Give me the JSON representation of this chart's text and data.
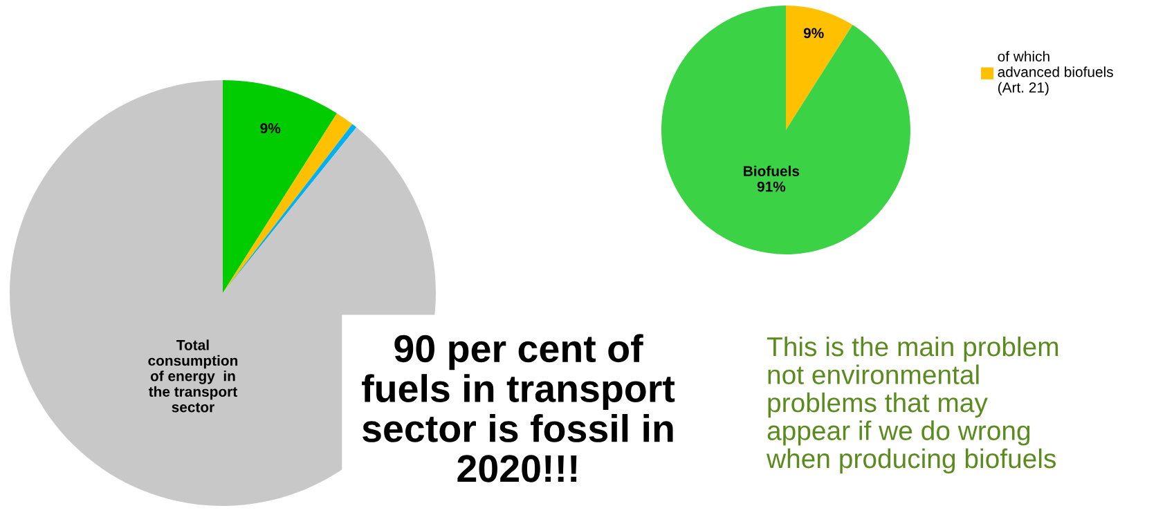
{
  "chart_data": [
    {
      "type": "pie",
      "categories": [
        null,
        null,
        null,
        null
      ],
      "values": [
        9,
        1.4,
        0.4,
        89.2
      ],
      "colors": [
        "#00cc00",
        "#ffc000",
        "#00b0f0",
        "#c8c8c8"
      ],
      "value_labels": [
        "9%",
        null,
        null,
        "Total\nconsumption\nof energy  in\nthe transport\nsector"
      ],
      "annotations": [
        "90 per cent of\nfuels in transport\nsector is fossil in\n2020!!!"
      ]
    },
    {
      "type": "pie",
      "categories": [
        "of which\nadvanced biofuels\n(Art. 21)",
        null
      ],
      "values": [
        9,
        91
      ],
      "colors": [
        "#ffc000",
        "#3cd246"
      ],
      "value_labels": [
        "9%",
        "Biofuels\n91%"
      ],
      "legend": "right",
      "annotations": [
        "This is the main problem\nnot environmental\nproblems that may\nappear if we do wrong\nwhen producing biofuels"
      ]
    }
  ]
}
